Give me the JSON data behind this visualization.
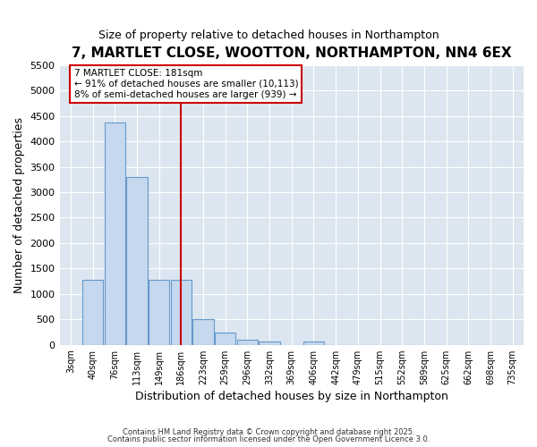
{
  "title": "7, MARTLET CLOSE, WOOTTON, NORTHAMPTON, NN4 6EX",
  "subtitle": "Size of property relative to detached houses in Northampton",
  "xlabel": "Distribution of detached houses by size in Northampton",
  "ylabel": "Number of detached properties",
  "categories": [
    "3sqm",
    "40sqm",
    "76sqm",
    "113sqm",
    "149sqm",
    "186sqm",
    "223sqm",
    "259sqm",
    "296sqm",
    "332sqm",
    "369sqm",
    "406sqm",
    "442sqm",
    "479sqm",
    "515sqm",
    "552sqm",
    "589sqm",
    "625sqm",
    "662sqm",
    "698sqm",
    "735sqm"
  ],
  "values": [
    0,
    1280,
    4380,
    3300,
    1280,
    1280,
    500,
    240,
    100,
    60,
    0,
    60,
    0,
    0,
    0,
    0,
    0,
    0,
    0,
    0,
    0
  ],
  "bar_color_face": "#c5d8ee",
  "bar_color_edge": "#6699cc",
  "redline_x": 5.0,
  "redline_color": "#cc0000",
  "annotation_line1": "7 MARTLET CLOSE: 181sqm",
  "annotation_line2": "← 91% of detached houses are smaller (10,113)",
  "annotation_line3": "8% of semi-detached houses are larger (939) →",
  "annotation_box_color": "#cc0000",
  "ylim": [
    0,
    5500
  ],
  "yticks": [
    0,
    500,
    1000,
    1500,
    2000,
    2500,
    3000,
    3500,
    4000,
    4500,
    5000,
    5500
  ],
  "fig_bg_color": "#ffffff",
  "ax_bg_color": "#dce6f0",
  "grid_color": "#ffffff",
  "footer1": "Contains HM Land Registry data © Crown copyright and database right 2025.",
  "footer2": "Contains public sector information licensed under the Open Government Licence 3.0."
}
